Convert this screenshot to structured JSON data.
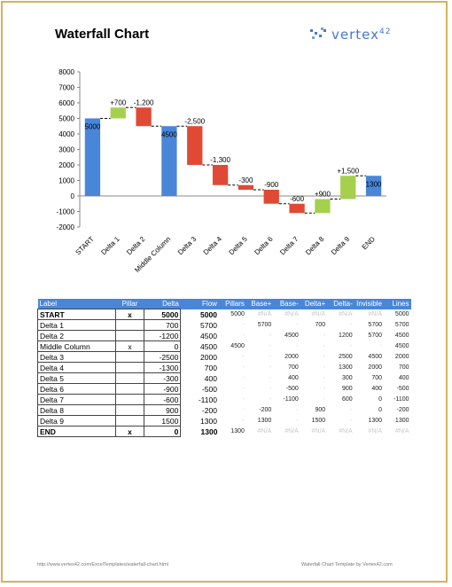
{
  "page": {
    "title": "Waterfall Chart",
    "logo_text": "vertex",
    "logo_sup": "42",
    "footer_left": "http://www.vertex42.com/ExcelTemplates/waterfall-chart.html",
    "footer_right": "Waterfall Chart Template by Vertex42.com"
  },
  "colors": {
    "pillar": "#4a86d8",
    "increase": "#a5d04e",
    "decrease": "#e04a35",
    "frame": "#d8b25a"
  },
  "chart_data": {
    "type": "bar",
    "title": "",
    "ylim": [
      -2000,
      8000
    ],
    "yticks": [
      -2000,
      -1000,
      0,
      1000,
      2000,
      3000,
      4000,
      5000,
      6000,
      7000,
      8000
    ],
    "grid": false,
    "categories": [
      "START",
      "Delta 1",
      "Delta 2",
      "Middle Column",
      "Delta 3",
      "Delta 4",
      "Delta 5",
      "Delta 6",
      "Delta 7",
      "Delta 8",
      "Delta 9",
      "END"
    ],
    "bars": [
      {
        "kind": "pillar",
        "from": 0,
        "to": 5000,
        "label": "5000"
      },
      {
        "kind": "increase",
        "from": 5000,
        "to": 5700,
        "label": "+700"
      },
      {
        "kind": "decrease",
        "from": 5700,
        "to": 4500,
        "label": "-1,200"
      },
      {
        "kind": "pillar",
        "from": 0,
        "to": 4500,
        "label": "4500"
      },
      {
        "kind": "decrease",
        "from": 4500,
        "to": 2000,
        "label": "-2,500"
      },
      {
        "kind": "decrease",
        "from": 2000,
        "to": 700,
        "label": "-1,300"
      },
      {
        "kind": "decrease",
        "from": 700,
        "to": 400,
        "label": "-300"
      },
      {
        "kind": "decrease",
        "from": 400,
        "to": -500,
        "label": "-900"
      },
      {
        "kind": "decrease",
        "from": -500,
        "to": -1100,
        "label": "-600"
      },
      {
        "kind": "increase",
        "from": -1100,
        "to": -200,
        "label": "+900"
      },
      {
        "kind": "increase",
        "from": -200,
        "to": 1300,
        "label": "+1,500"
      },
      {
        "kind": "pillar",
        "from": 0,
        "to": 1300,
        "label": "1300"
      }
    ]
  },
  "table": {
    "headers": [
      "Label",
      "Pillar",
      "Delta",
      "Flow",
      "Pillars",
      "Base+",
      "Base-",
      "Delta+",
      "Delta-",
      "Invisible",
      "Lines"
    ],
    "rows": [
      {
        "bold": true,
        "cells": [
          "START",
          "x",
          "5000",
          "5000",
          "5000",
          "#N/A",
          "#N/A",
          "#N/A",
          "#N/A",
          "#N/A",
          "5000"
        ]
      },
      {
        "bold": false,
        "cells": [
          "Delta 1",
          "",
          "700",
          "5700",
          "-",
          "5700",
          "-",
          "700",
          "-",
          "5700",
          "5700"
        ]
      },
      {
        "bold": false,
        "cells": [
          "Delta 2",
          "",
          "-1200",
          "4500",
          "-",
          "-",
          "4500",
          "-",
          "1200",
          "5700",
          "4500"
        ]
      },
      {
        "bold": false,
        "cells": [
          "Middle Column",
          "x",
          "0",
          "4500",
          "4500",
          "-",
          "-",
          "-",
          "-",
          "-",
          "4500"
        ]
      },
      {
        "bold": false,
        "cells": [
          "Delta 3",
          "",
          "-2500",
          "2000",
          "-",
          "-",
          "2000",
          "-",
          "2500",
          "4500",
          "2000"
        ]
      },
      {
        "bold": false,
        "cells": [
          "Delta 4",
          "",
          "-1300",
          "700",
          "-",
          "-",
          "700",
          "-",
          "1300",
          "2000",
          "700"
        ]
      },
      {
        "bold": false,
        "cells": [
          "Delta 5",
          "",
          "-300",
          "400",
          "-",
          "-",
          "400",
          "-",
          "300",
          "700",
          "400"
        ]
      },
      {
        "bold": false,
        "cells": [
          "Delta 6",
          "",
          "-900",
          "-500",
          "-",
          "-",
          "-500",
          "-",
          "900",
          "400",
          "-500"
        ]
      },
      {
        "bold": false,
        "cells": [
          "Delta 7",
          "",
          "-600",
          "-1100",
          "-",
          "-",
          "-1100",
          "-",
          "600",
          "0",
          "-1100"
        ]
      },
      {
        "bold": false,
        "cells": [
          "Delta 8",
          "",
          "900",
          "-200",
          "-",
          "-200",
          "-",
          "900",
          "-",
          "0",
          "-200"
        ]
      },
      {
        "bold": false,
        "cells": [
          "Delta 9",
          "",
          "1500",
          "1300",
          "-",
          "1300",
          "-",
          "1500",
          "-",
          "1300",
          "1300"
        ]
      },
      {
        "bold": true,
        "cells": [
          "END",
          "x",
          "0",
          "1300",
          "1300",
          "#N/A",
          "#N/A",
          "#N/A",
          "#N/A",
          "#N/A",
          "#N/A"
        ]
      }
    ]
  }
}
